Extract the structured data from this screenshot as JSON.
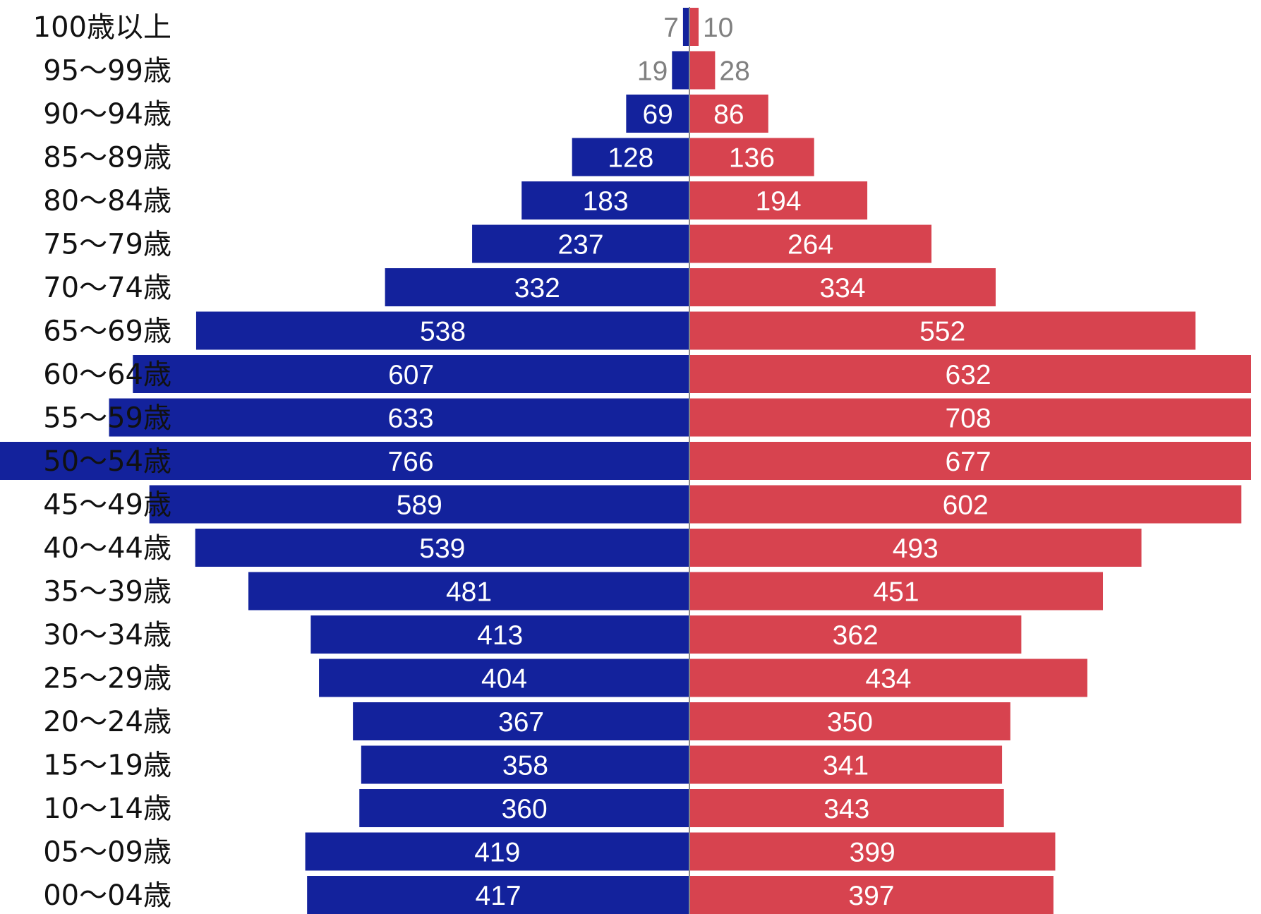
{
  "chart_data": {
    "type": "bar",
    "orientation": "horizontal",
    "layout": "population-pyramid",
    "categories": [
      "100歳以上",
      "95〜99歳",
      "90〜94歳",
      "85〜89歳",
      "80〜84歳",
      "75〜79歳",
      "70〜74歳",
      "65〜69歳",
      "60〜64歳",
      "55〜59歳",
      "50〜54歳",
      "45〜49歳",
      "40〜44歳",
      "35〜39歳",
      "30〜34歳",
      "25〜29歳",
      "20〜24歳",
      "15〜19歳",
      "10〜14歳",
      "05〜09歳",
      "00〜04歳"
    ],
    "series": [
      {
        "side": "left",
        "color": "#13229c",
        "values": [
          7,
          19,
          69,
          128,
          183,
          237,
          332,
          538,
          607,
          633,
          766,
          589,
          539,
          481,
          413,
          404,
          367,
          358,
          360,
          419,
          417
        ]
      },
      {
        "side": "right",
        "color": "#d7434f",
        "values": [
          10,
          28,
          86,
          136,
          194,
          264,
          334,
          552,
          632,
          708,
          677,
          602,
          493,
          451,
          362,
          434,
          350,
          341,
          343,
          399,
          397
        ]
      }
    ],
    "value_axis_max": 608,
    "bars_clipped_beyond_frame": true,
    "title": "",
    "xlabel": "",
    "ylabel": "",
    "data_labels": true,
    "legend": "none",
    "grid": false,
    "center_line_color": "#888888"
  }
}
